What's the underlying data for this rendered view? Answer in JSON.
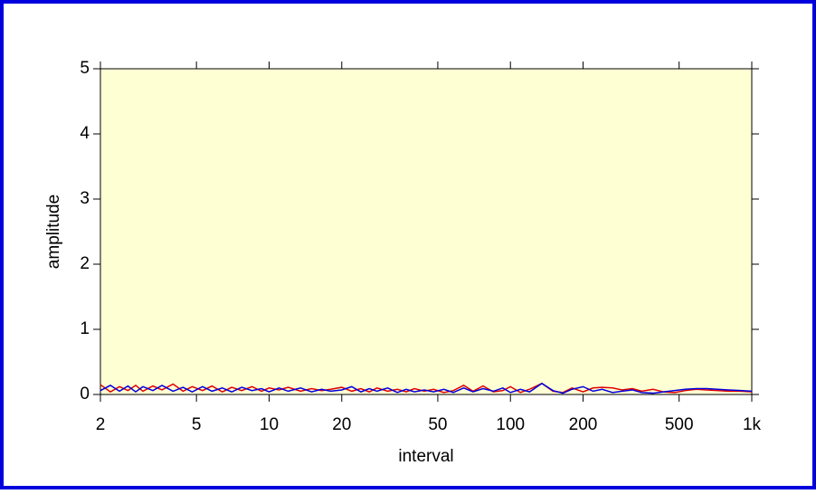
{
  "chart_data": {
    "type": "line",
    "xlabel": "interval",
    "ylabel": "amplitude",
    "xscale": "log",
    "x": [
      2,
      2.2,
      2.4,
      2.6,
      2.8,
      3,
      3.3,
      3.6,
      4,
      4.4,
      4.8,
      5.3,
      5.8,
      6.4,
      7,
      7.7,
      8.5,
      9.3,
      10,
      11,
      12,
      13.5,
      15,
      16.5,
      18,
      20,
      22,
      24,
      26,
      28,
      31,
      34,
      37,
      40,
      44,
      48,
      53,
      58,
      64,
      70,
      77,
      85,
      93,
      100,
      110,
      120,
      135,
      150,
      165,
      180,
      200,
      220,
      240,
      265,
      290,
      320,
      350,
      390,
      430,
      480,
      530,
      590,
      650,
      720,
      800,
      900,
      1000
    ],
    "series": [
      {
        "color": "#e00000",
        "values": [
          0.15,
          0.04,
          0.12,
          0.06,
          0.14,
          0.05,
          0.13,
          0.07,
          0.16,
          0.05,
          0.12,
          0.06,
          0.13,
          0.04,
          0.11,
          0.06,
          0.12,
          0.05,
          0.1,
          0.07,
          0.11,
          0.05,
          0.09,
          0.06,
          0.08,
          0.11,
          0.05,
          0.09,
          0.04,
          0.1,
          0.05,
          0.08,
          0.04,
          0.09,
          0.05,
          0.08,
          0.03,
          0.06,
          0.14,
          0.05,
          0.13,
          0.04,
          0.06,
          0.12,
          0.03,
          0.08,
          0.17,
          0.05,
          0.03,
          0.1,
          0.04,
          0.1,
          0.11,
          0.1,
          0.07,
          0.09,
          0.05,
          0.08,
          0.04,
          0.03,
          0.06,
          0.08,
          0.07,
          0.06,
          0.05,
          0.05,
          0.04
        ]
      },
      {
        "color": "#0000e0",
        "values": [
          0.06,
          0.14,
          0.05,
          0.13,
          0.04,
          0.12,
          0.06,
          0.14,
          0.05,
          0.11,
          0.04,
          0.12,
          0.05,
          0.1,
          0.04,
          0.11,
          0.06,
          0.09,
          0.04,
          0.1,
          0.05,
          0.1,
          0.04,
          0.08,
          0.05,
          0.07,
          0.12,
          0.04,
          0.09,
          0.05,
          0.1,
          0.03,
          0.08,
          0.04,
          0.07,
          0.04,
          0.08,
          0.03,
          0.1,
          0.04,
          0.09,
          0.05,
          0.1,
          0.03,
          0.08,
          0.04,
          0.17,
          0.06,
          0.02,
          0.08,
          0.12,
          0.05,
          0.08,
          0.03,
          0.05,
          0.07,
          0.03,
          0.02,
          0.04,
          0.06,
          0.08,
          0.09,
          0.09,
          0.08,
          0.07,
          0.06,
          0.05
        ]
      }
    ],
    "xlim": [
      2,
      1000
    ],
    "xticks": [
      2,
      5,
      10,
      20,
      50,
      100,
      200,
      500,
      {
        "value": 1000,
        "label": "1k"
      }
    ],
    "ylim": [
      0,
      5
    ],
    "yticks": [
      0,
      1,
      2,
      3,
      4,
      5
    ],
    "background": "#ffffd4",
    "frame_color": "#0000dd"
  }
}
